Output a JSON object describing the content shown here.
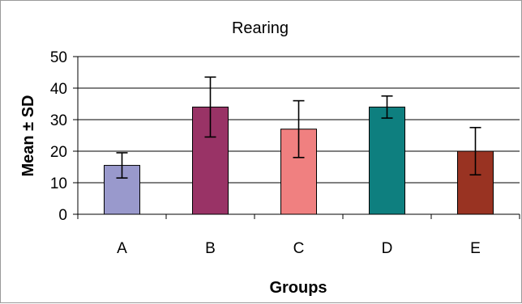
{
  "chart_data": {
    "type": "bar",
    "title": "Rearing",
    "xlabel": "Groups",
    "ylabel": "Mean ± SD",
    "categories": [
      "A",
      "B",
      "C",
      "D",
      "E"
    ],
    "values": [
      15.5,
      34,
      27,
      34,
      20
    ],
    "error_bars": [
      4,
      9.5,
      9,
      3.5,
      7.5
    ],
    "ylim": [
      0,
      50
    ],
    "yticks": [
      "0",
      "10",
      "20",
      "30",
      "40",
      "50"
    ],
    "grid": true,
    "bar_colors": [
      "#9999cc",
      "#993366",
      "#f08080",
      "#0e7f7f",
      "#993322"
    ]
  }
}
